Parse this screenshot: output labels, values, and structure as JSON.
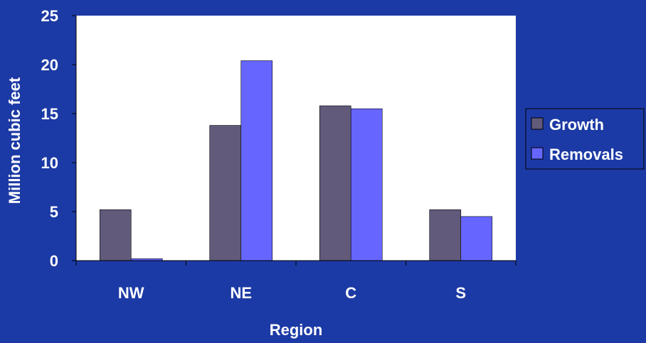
{
  "chart_data": {
    "type": "bar",
    "categories": [
      "NW",
      "NE",
      "C",
      "S"
    ],
    "series": [
      {
        "name": "Growth",
        "values": [
          5.2,
          13.8,
          15.8,
          5.2
        ]
      },
      {
        "name": "Removals",
        "values": [
          0.2,
          20.4,
          15.5,
          4.5
        ]
      }
    ],
    "title": "",
    "xlabel": "Region",
    "ylabel": "Million cubic feet",
    "ylim": [
      0,
      25
    ],
    "yticks": [
      "0",
      "5",
      "10",
      "15",
      "20",
      "25"
    ],
    "grid": false,
    "legend_position": "right"
  },
  "colors": {
    "background": "#1c3aa5",
    "plot_area": "#ffffff",
    "growth": "#625a7b",
    "removals": "#6666ff"
  }
}
